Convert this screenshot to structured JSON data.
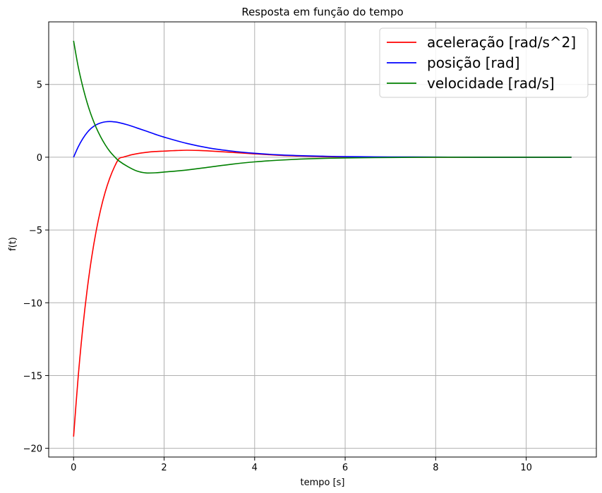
{
  "chart_data": {
    "type": "line",
    "title": "Resposta em função do tempo",
    "xlabel": "tempo [s]",
    "ylabel": "f(t)",
    "xlim": [
      -0.55,
      11.55
    ],
    "ylim": [
      -20.6,
      9.3
    ],
    "xticks": [
      0,
      2,
      4,
      6,
      8,
      10
    ],
    "yticks": [
      5,
      0,
      -5,
      -10,
      -15,
      -20
    ],
    "ytick_labels": [
      "5",
      "0",
      "−5",
      "−10",
      "−15",
      "−20"
    ],
    "grid": true,
    "legend_position": "top-right",
    "series": [
      {
        "name": "aceleração [rad/s^2]",
        "color": "#ff0000",
        "x": [
          0,
          0.1,
          0.2,
          0.3,
          0.4,
          0.5,
          0.6,
          0.7,
          0.8,
          0.9,
          1.0,
          1.1,
          1.2,
          1.3,
          1.4,
          1.6,
          1.8,
          2.0,
          2.2,
          2.5,
          2.8,
          3.0,
          3.5,
          4.0,
          4.5,
          5.0,
          5.5,
          6.0,
          6.5,
          7.0,
          8.0,
          9.0,
          10.0,
          11.0
        ],
        "y": [
          -19.2,
          -15.15,
          -11.82,
          -9.1,
          -6.87,
          -5.05,
          -3.57,
          -2.38,
          -1.43,
          -0.68,
          -0.11,
          0.01,
          0.1,
          0.18,
          0.24,
          0.33,
          0.39,
          0.42,
          0.45,
          0.48,
          0.46,
          0.43,
          0.33,
          0.23,
          0.14,
          0.08,
          0.04,
          0.02,
          0.01,
          0.0,
          0.0,
          0.0,
          0.0,
          0.0
        ]
      },
      {
        "name": "posição [rad]",
        "color": "#0000ff",
        "x": [
          0,
          0.1,
          0.2,
          0.3,
          0.4,
          0.5,
          0.6,
          0.7,
          0.8,
          0.9,
          1.0,
          1.2,
          1.4,
          1.6,
          1.8,
          2.0,
          2.5,
          3.0,
          3.5,
          4.0,
          4.5,
          5.0,
          5.5,
          6.0,
          7.0,
          8.0,
          9.0,
          10.0,
          11.0
        ],
        "y": [
          0,
          0.7,
          1.26,
          1.7,
          2.02,
          2.23,
          2.36,
          2.43,
          2.45,
          2.43,
          2.38,
          2.22,
          2.01,
          1.8,
          1.58,
          1.38,
          0.95,
          0.63,
          0.42,
          0.27,
          0.17,
          0.11,
          0.07,
          0.04,
          0.02,
          0.01,
          0.0,
          0.0,
          0.0
        ]
      },
      {
        "name": "velocidade [rad/s]",
        "color": "#008000",
        "x": [
          0,
          0.1,
          0.2,
          0.3,
          0.4,
          0.5,
          0.6,
          0.7,
          0.8,
          0.9,
          1.0,
          1.2,
          1.4,
          1.6,
          1.8,
          2.0,
          2.5,
          3.0,
          3.5,
          4.0,
          4.5,
          5.0,
          5.5,
          6.0,
          7.0,
          8.0,
          9.0,
          10.0,
          11.0
        ],
        "y": [
          8.0,
          6.25,
          4.88,
          3.74,
          2.8,
          2.03,
          1.39,
          0.85,
          0.4,
          0.05,
          -0.25,
          -0.65,
          -0.95,
          -1.08,
          -1.07,
          -1.02,
          -0.88,
          -0.68,
          -0.48,
          -0.32,
          -0.21,
          -0.13,
          -0.08,
          -0.05,
          -0.02,
          0.0,
          0.0,
          0.0,
          0.0
        ]
      }
    ]
  }
}
